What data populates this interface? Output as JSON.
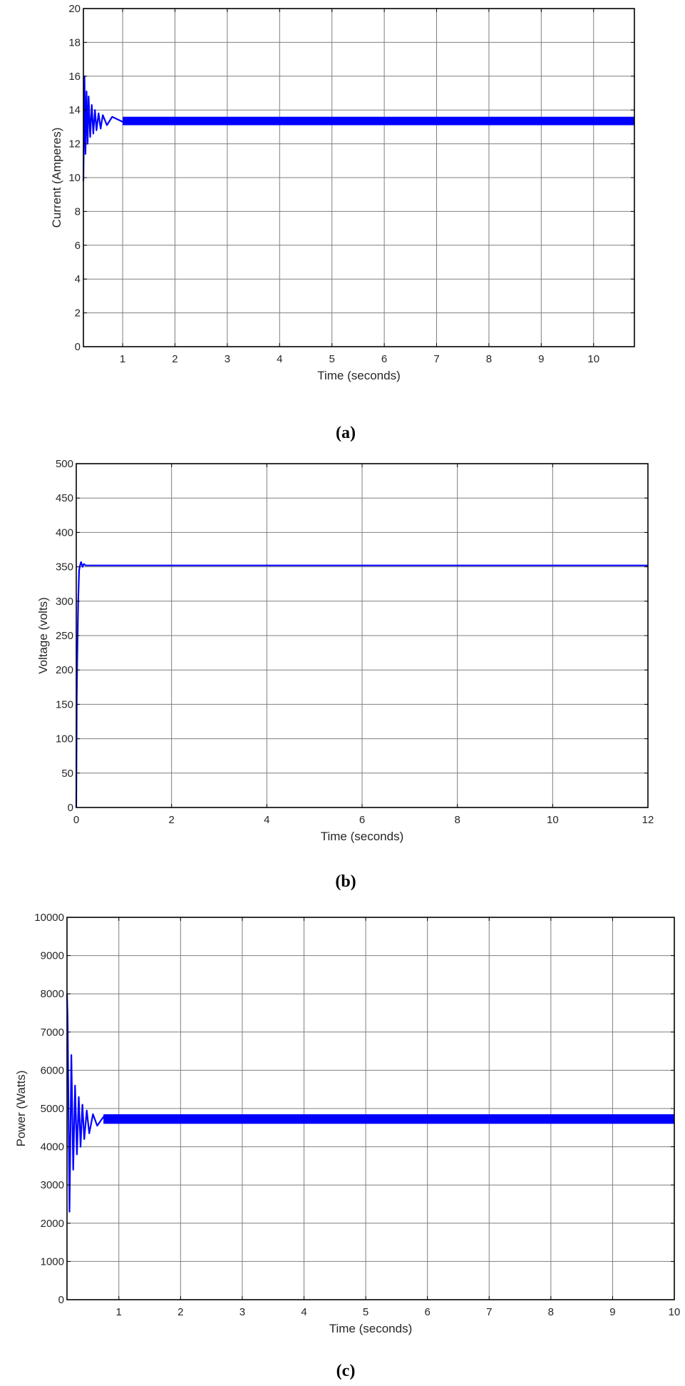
{
  "figures": [
    {
      "caption": "(a)",
      "chart": "chart_data.0"
    },
    {
      "caption": "(b)",
      "chart": "chart_data.1"
    },
    {
      "caption": "(c)",
      "chart": "chart_data.2"
    }
  ],
  "colors": {
    "trace": "#0000ff",
    "axis": "#000000",
    "grid": "#7f7f7f",
    "text": "#262626",
    "background": "#ffffff"
  },
  "chart_data": [
    {
      "type": "line",
      "title": "",
      "caption": "(a)",
      "xlabel": "Time (seconds)",
      "ylabel": "Current (Amperes)",
      "xlim": [
        0.25,
        10.78
      ],
      "ylim": [
        0,
        20
      ],
      "xticks": [
        1,
        2,
        3,
        4,
        5,
        6,
        7,
        8,
        9,
        10
      ],
      "yticks": [
        0,
        2,
        4,
        6,
        8,
        10,
        12,
        14,
        16,
        18,
        20
      ],
      "grid": true,
      "legend": null,
      "series": [
        {
          "name": "Current",
          "steady_state": 13.35,
          "ripple_band": [
            13.1,
            13.6
          ],
          "x": [
            0.25,
            0.27,
            0.29,
            0.31,
            0.33,
            0.35,
            0.38,
            0.41,
            0.44,
            0.47,
            0.5,
            0.54,
            0.58,
            0.62,
            0.7,
            0.8,
            1.0,
            1.5,
            10.78
          ],
          "values": [
            9.8,
            16.0,
            11.4,
            15.1,
            12.0,
            14.8,
            12.4,
            14.3,
            12.6,
            14.0,
            12.8,
            13.8,
            12.9,
            13.7,
            13.1,
            13.6,
            13.3,
            13.35,
            13.35
          ]
        }
      ]
    },
    {
      "type": "line",
      "title": "",
      "caption": "(b)",
      "xlabel": "Time (seconds)",
      "ylabel": "Voltage (volts)",
      "xlim": [
        0,
        12
      ],
      "ylim": [
        0,
        500
      ],
      "xticks": [
        0,
        2,
        4,
        6,
        8,
        10,
        12
      ],
      "yticks": [
        0,
        50,
        100,
        150,
        200,
        250,
        300,
        350,
        400,
        450,
        500
      ],
      "grid": true,
      "legend": null,
      "series": [
        {
          "name": "Voltage",
          "steady_state": 352,
          "x": [
            0,
            0.01,
            0.02,
            0.04,
            0.06,
            0.08,
            0.1,
            0.13,
            0.16,
            0.2,
            0.3,
            12
          ],
          "values": [
            0,
            160,
            210,
            300,
            345,
            352,
            357,
            350,
            354,
            352,
            352,
            352
          ]
        }
      ]
    },
    {
      "type": "line",
      "title": "",
      "caption": "(c)",
      "xlabel": "Time (seconds)",
      "ylabel": "Power (Watts)",
      "xlim": [
        0.16,
        10
      ],
      "ylim": [
        0,
        10000
      ],
      "xticks": [
        1,
        2,
        3,
        4,
        5,
        6,
        7,
        8,
        9,
        10
      ],
      "yticks": [
        0,
        1000,
        2000,
        3000,
        4000,
        5000,
        6000,
        7000,
        8000,
        9000,
        10000
      ],
      "grid": true,
      "legend": null,
      "series": [
        {
          "name": "Power",
          "steady_state": 4720,
          "ripple_band": [
            4600,
            4850
          ],
          "x": [
            0.16,
            0.17,
            0.2,
            0.23,
            0.26,
            0.29,
            0.32,
            0.35,
            0.38,
            0.41,
            0.44,
            0.48,
            0.52,
            0.58,
            0.65,
            0.75,
            1.0,
            10
          ],
          "values": [
            8000,
            7300,
            2300,
            6400,
            3400,
            5600,
            3800,
            5300,
            4000,
            5100,
            4200,
            4950,
            4350,
            4850,
            4550,
            4780,
            4700,
            4720
          ]
        }
      ]
    }
  ]
}
